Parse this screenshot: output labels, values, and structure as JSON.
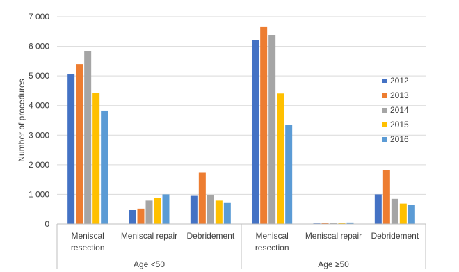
{
  "chart_data": {
    "type": "bar",
    "title": "",
    "ylabel": "Number of procedures",
    "xlabel": "",
    "ylim": [
      0,
      7000
    ],
    "yticks": [
      0,
      1000,
      2000,
      3000,
      4000,
      5000,
      6000,
      7000
    ],
    "ytick_labels": [
      "0",
      "1 000",
      "2 000",
      "3 000",
      "4 000",
      "5 000",
      "6 000",
      "7 000"
    ],
    "grid": true,
    "legend_position": "right",
    "groups": [
      {
        "label": "Age <50",
        "categories": [
          "Meniscal\nresection",
          "Meniscal repair",
          "Debridement"
        ]
      },
      {
        "label": "Age ≥50",
        "categories": [
          "Meniscal\nresection",
          "Meniscal repair",
          "Debridement"
        ]
      }
    ],
    "series": [
      {
        "name": "2012",
        "color": "#4472C4",
        "values": [
          5050,
          470,
          950,
          6220,
          20,
          1000
        ]
      },
      {
        "name": "2013",
        "color": "#ED7D31",
        "values": [
          5400,
          520,
          1750,
          6650,
          25,
          1830
        ]
      },
      {
        "name": "2014",
        "color": "#A5A5A5",
        "values": [
          5830,
          790,
          980,
          6380,
          30,
          850
        ]
      },
      {
        "name": "2015",
        "color": "#FFC000",
        "values": [
          4420,
          870,
          790,
          4410,
          45,
          690
        ]
      },
      {
        "name": "2016",
        "color": "#5B9BD5",
        "values": [
          3830,
          1000,
          710,
          3340,
          50,
          640
        ]
      }
    ]
  }
}
